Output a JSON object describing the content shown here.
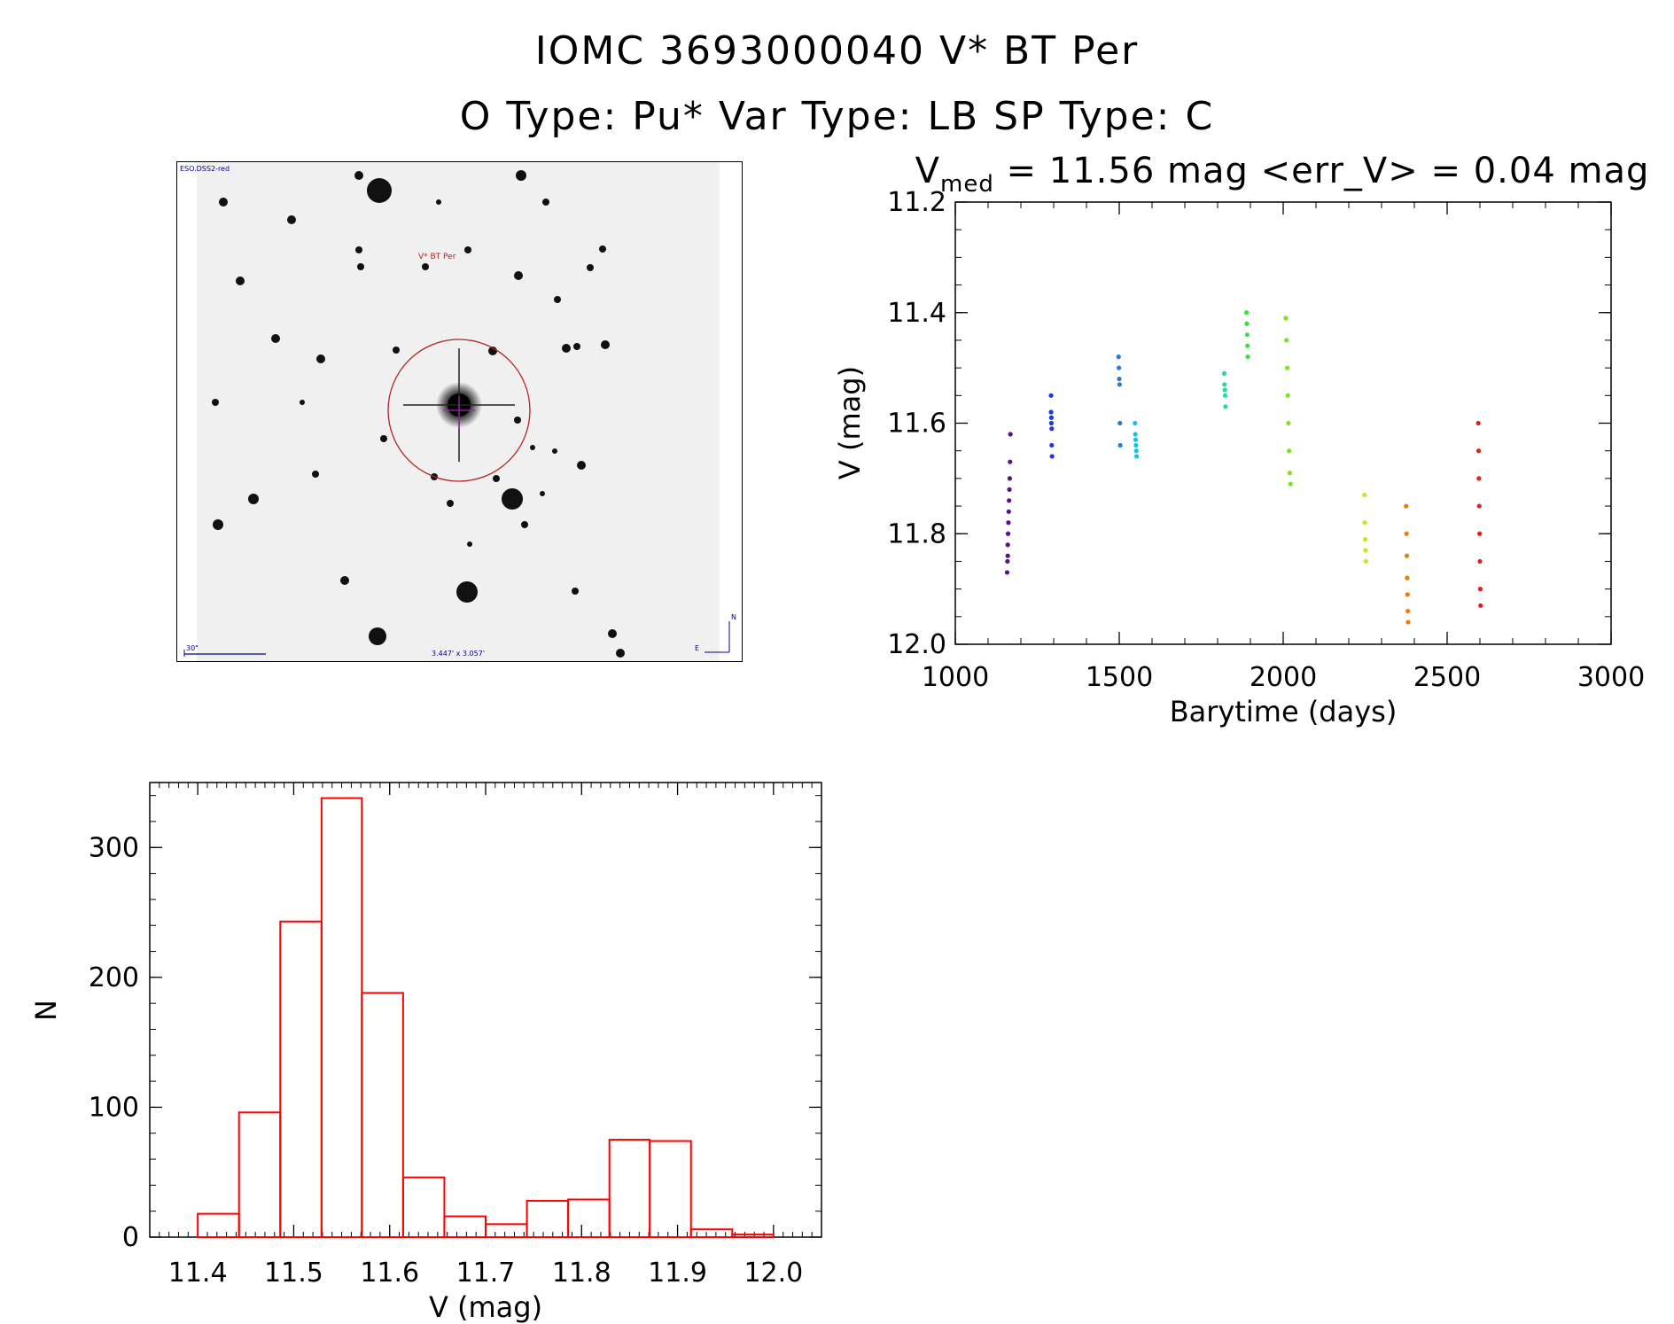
{
  "header": {
    "line1": "IOMC 3693000040    V* BT Per",
    "line2": "O Type: Pu*  Var Type: LB  SP Type: C"
  },
  "finder": {
    "survey_label": "ESO.DSS2-red",
    "target_label": "V* BT Per",
    "scale_label": "30\"",
    "fov_label": "3.447' x 3.057'",
    "north_label": "N",
    "east_label": "E",
    "colors": {
      "target": "#b22222",
      "scale": "#00008b"
    }
  },
  "chart_data": [
    {
      "type": "scatter",
      "title_parts": {
        "v": "V",
        "sub": "med",
        "rest": " = 11.56 mag <err_V> = 0.04 mag"
      },
      "xlabel": "Barytime (days)",
      "ylabel": "V (mag)",
      "xlim": [
        1000,
        3000
      ],
      "ylim": [
        12.0,
        11.2
      ],
      "xticks": [
        1000,
        1500,
        2000,
        2500,
        3000
      ],
      "yticks": [
        11.2,
        11.4,
        11.6,
        11.8,
        12.0
      ],
      "grid": false,
      "series": [
        {
          "color": "#5b0f8a",
          "x": [
            1158,
            1159,
            1160,
            1160,
            1161,
            1162,
            1163,
            1164,
            1165,
            1166,
            1167,
            1168
          ],
          "y": [
            11.87,
            11.85,
            11.84,
            11.82,
            11.8,
            11.78,
            11.76,
            11.74,
            11.72,
            11.7,
            11.67,
            11.62
          ]
        },
        {
          "color": "#1a3adb",
          "x": [
            1292,
            1292,
            1293,
            1293,
            1294,
            1294,
            1295
          ],
          "y": [
            11.55,
            11.58,
            11.59,
            11.6,
            11.61,
            11.64,
            11.66
          ]
        },
        {
          "color": "#2a7ad6",
          "x": [
            1498,
            1499,
            1500,
            1501,
            1502,
            1503
          ],
          "y": [
            11.48,
            11.5,
            11.52,
            11.53,
            11.6,
            11.64
          ]
        },
        {
          "color": "#13c2e8",
          "x": [
            1548,
            1549,
            1550,
            1551,
            1552,
            1553
          ],
          "y": [
            11.6,
            11.62,
            11.63,
            11.64,
            11.65,
            11.66
          ]
        },
        {
          "color": "#20dca0",
          "x": [
            1820,
            1821,
            1822,
            1823,
            1824
          ],
          "y": [
            11.51,
            11.53,
            11.54,
            11.55,
            11.57
          ]
        },
        {
          "color": "#39e33a",
          "x": [
            1888,
            1889,
            1890,
            1891,
            1892
          ],
          "y": [
            11.4,
            11.42,
            11.44,
            11.46,
            11.48
          ]
        },
        {
          "color": "#7ee31a",
          "x": [
            2008,
            2010,
            2012,
            2014,
            2016,
            2018,
            2020,
            2022
          ],
          "y": [
            11.41,
            11.45,
            11.5,
            11.55,
            11.6,
            11.65,
            11.69,
            11.71
          ]
        },
        {
          "color": "#cfe318",
          "x": [
            2248,
            2249,
            2250,
            2251,
            2252
          ],
          "y": [
            11.73,
            11.78,
            11.81,
            11.83,
            11.85
          ]
        },
        {
          "color": "#f07a10",
          "x": [
            2375,
            2376,
            2377,
            2378,
            2379,
            2380,
            2381
          ],
          "y": [
            11.75,
            11.8,
            11.84,
            11.88,
            11.91,
            11.94,
            11.96
          ]
        },
        {
          "color": "#e0201a",
          "x": [
            2595,
            2596,
            2597,
            2598,
            2599,
            2600,
            2601,
            2602
          ],
          "y": [
            11.6,
            11.65,
            11.7,
            11.75,
            11.8,
            11.85,
            11.9,
            11.93
          ]
        }
      ]
    },
    {
      "type": "bar",
      "style": "histogram-outline",
      "color": "#ff0000",
      "xlabel": "V (mag)",
      "ylabel": "N",
      "xlim": [
        11.35,
        12.05
      ],
      "ylim": [
        0,
        350
      ],
      "xticks": [
        11.4,
        11.5,
        11.6,
        11.7,
        11.8,
        11.9,
        12.0
      ],
      "xtick_labels": [
        "11.4",
        "11.5",
        "11.6",
        "11.7",
        "11.8",
        "11.9",
        "12.0"
      ],
      "yticks": [
        0,
        100,
        200,
        300
      ],
      "bin_edges": [
        11.4,
        11.443,
        11.486,
        11.529,
        11.571,
        11.614,
        11.657,
        11.7,
        11.743,
        11.786,
        11.829,
        11.871,
        11.914,
        11.957,
        12.0
      ],
      "values": [
        18,
        96,
        243,
        338,
        188,
        46,
        16,
        10,
        28,
        29,
        75,
        74,
        6,
        2
      ]
    }
  ]
}
